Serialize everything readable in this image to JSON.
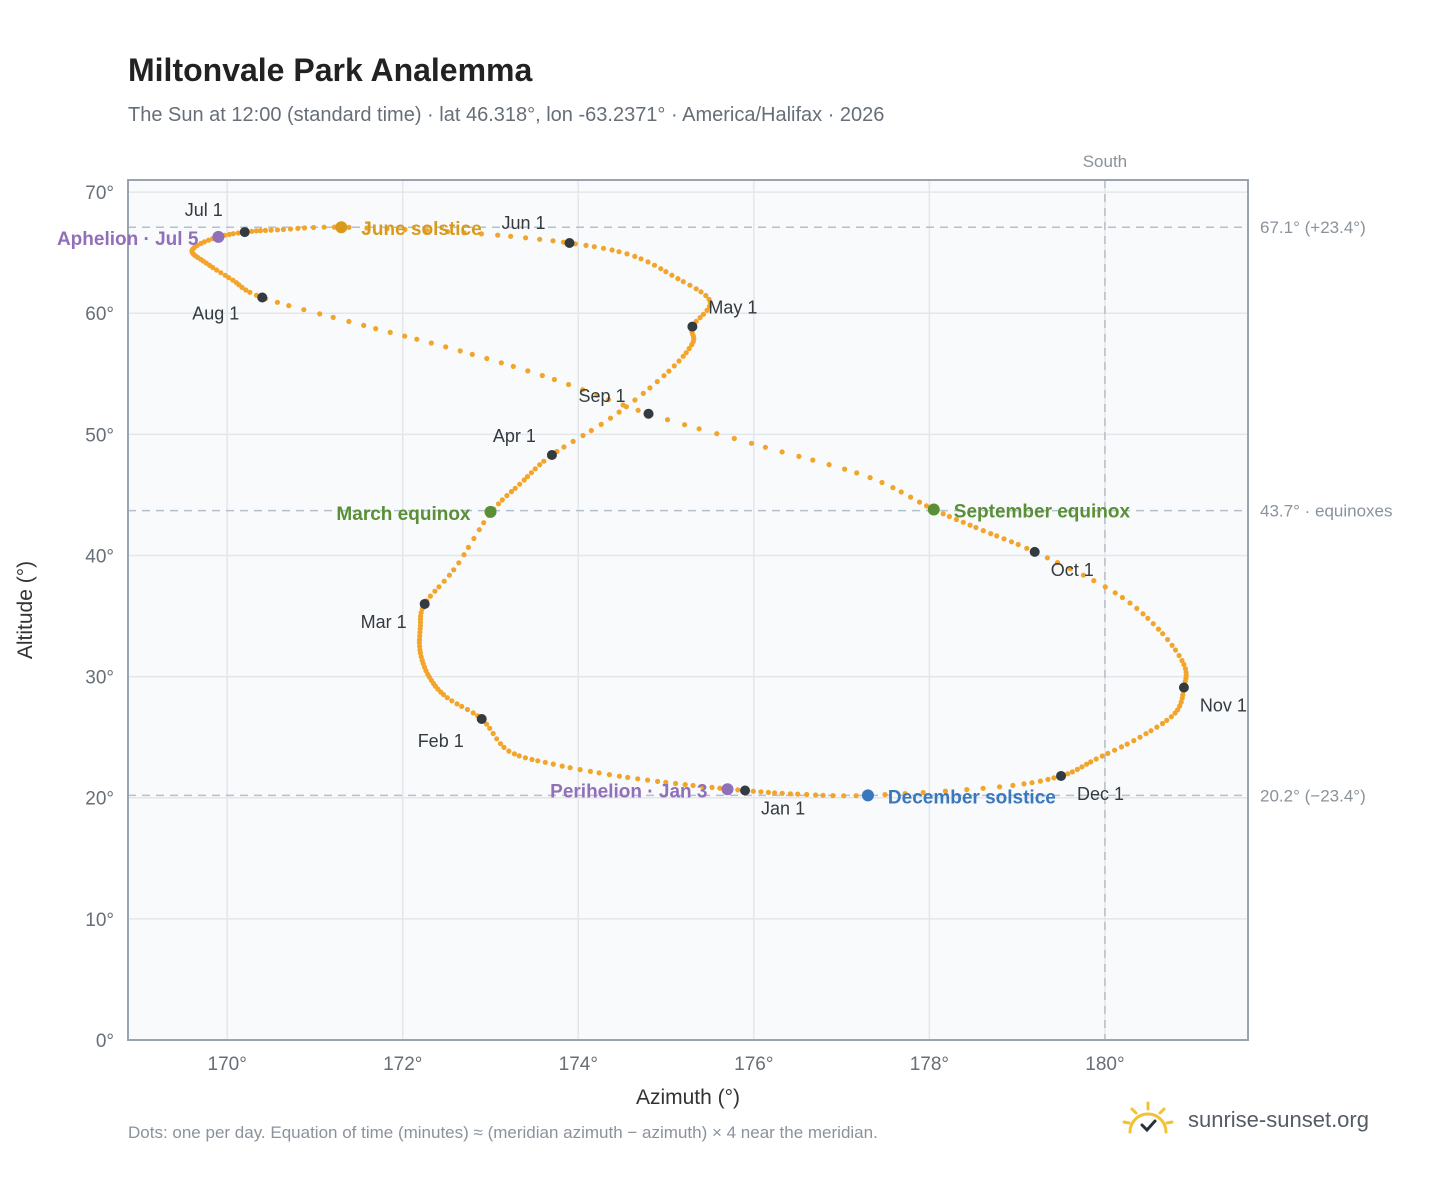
{
  "title": "Miltonvale Park Analemma",
  "subtitle": "The Sun at 12:00 (standard time) · lat 46.318°, lon -63.2371° · America/Halifax · 2026",
  "footnote": "Dots: one per day. Equation of time (minutes) ≈ (meridian azimuth − azimuth) × 4 near the meridian.",
  "brand": {
    "name": "sunrise-sunset.org",
    "icon": "sun-logo-icon"
  },
  "colors": {
    "curve": "#f2a52a",
    "month_point": "#333a40",
    "solstice_june": "#d99a1c",
    "solstice_december": "#3a78bd",
    "equinox": "#5a8f36",
    "apsis": "#9070b8",
    "reference_line": "#b4c0cc",
    "frame": "#9aa4b0",
    "grid": "#e3e7eb",
    "plot_bg": "#f8fafc"
  },
  "chart_data": {
    "type": "scatter",
    "xlabel": "Azimuth (°)",
    "ylabel": "Altitude (°)",
    "xlim": [
      168.87,
      181.63
    ],
    "ylim": [
      0,
      71
    ],
    "x_ticks": [
      "170°",
      "172°",
      "174°",
      "176°",
      "178°",
      "180°"
    ],
    "y_ticks": [
      "0°",
      "10°",
      "20°",
      "30°",
      "40°",
      "50°",
      "60°",
      "70°"
    ],
    "x_tick_values": [
      170,
      172,
      174,
      176,
      178,
      180
    ],
    "y_tick_values": [
      0,
      10,
      20,
      30,
      40,
      50,
      60,
      70
    ],
    "grid": true,
    "meridian": {
      "x": 180,
      "label": "South"
    },
    "reference_lines": [
      {
        "y": 67.1,
        "label": "67.1° (+23.4°)"
      },
      {
        "y": 43.7,
        "label": "43.7° · equinoxes"
      },
      {
        "y": 20.2,
        "label": "20.2° (−23.4°)"
      }
    ],
    "month_points": [
      {
        "label": "Jan 1",
        "x": 175.9,
        "y": 20.6
      },
      {
        "label": "Feb 1",
        "x": 172.9,
        "y": 26.5
      },
      {
        "label": "Mar 1",
        "x": 172.25,
        "y": 36.0
      },
      {
        "label": "Apr 1",
        "x": 173.7,
        "y": 48.3
      },
      {
        "label": "May 1",
        "x": 175.3,
        "y": 58.9
      },
      {
        "label": "Jun 1",
        "x": 173.9,
        "y": 65.8
      },
      {
        "label": "Jul 1",
        "x": 170.2,
        "y": 66.7
      },
      {
        "label": "Aug 1",
        "x": 170.4,
        "y": 61.3
      },
      {
        "label": "Sep 1",
        "x": 174.8,
        "y": 51.7
      },
      {
        "label": "Oct 1",
        "x": 179.2,
        "y": 40.3
      },
      {
        "label": "Nov 1",
        "x": 180.9,
        "y": 29.1
      },
      {
        "label": "Dec 1",
        "x": 179.5,
        "y": 21.8
      }
    ],
    "events": [
      {
        "label": "June solstice",
        "x": 171.3,
        "y": 67.1,
        "kind": "solstice_june"
      },
      {
        "label": "December solstice",
        "x": 177.3,
        "y": 20.2,
        "kind": "solstice_december"
      },
      {
        "label": "March equinox",
        "x": 173.0,
        "y": 43.6,
        "kind": "equinox"
      },
      {
        "label": "September equinox",
        "x": 178.05,
        "y": 43.8,
        "kind": "equinox"
      },
      {
        "label": "Aphelion · Jul 5",
        "x": 169.9,
        "y": 66.3,
        "kind": "apsis"
      },
      {
        "label": "Perihelion · Jan 3",
        "x": 175.7,
        "y": 20.7,
        "kind": "apsis"
      }
    ],
    "series": [
      {
        "name": "",
        "note_style": "one dot per day",
        "values": [
          [
            175.9,
            20.6
          ],
          [
            175.2,
            21.1
          ],
          [
            174.45,
            21.8
          ],
          [
            173.7,
            22.8
          ],
          [
            173.2,
            23.9
          ],
          [
            172.9,
            26.5
          ],
          [
            172.5,
            28.3
          ],
          [
            172.3,
            30.0
          ],
          [
            172.2,
            32.0
          ],
          [
            172.2,
            34.0
          ],
          [
            172.25,
            36.0
          ],
          [
            172.6,
            39.0
          ],
          [
            173.0,
            43.5
          ],
          [
            173.35,
            46.0
          ],
          [
            173.7,
            48.3
          ],
          [
            174.4,
            51.5
          ],
          [
            175.0,
            55.0
          ],
          [
            175.3,
            57.5
          ],
          [
            175.3,
            58.9
          ],
          [
            175.5,
            61.0
          ],
          [
            175.1,
            63.0
          ],
          [
            174.6,
            64.8
          ],
          [
            173.9,
            65.8
          ],
          [
            172.8,
            66.6
          ],
          [
            171.3,
            67.1
          ],
          [
            170.6,
            66.9
          ],
          [
            170.2,
            66.7
          ],
          [
            169.85,
            66.2
          ],
          [
            169.6,
            65.2
          ],
          [
            169.75,
            64.2
          ],
          [
            170.05,
            62.8
          ],
          [
            170.4,
            61.3
          ],
          [
            171.5,
            59.1
          ],
          [
            172.6,
            57.0
          ],
          [
            173.7,
            54.6
          ],
          [
            174.8,
            51.7
          ],
          [
            176.1,
            49.0
          ],
          [
            177.3,
            46.5
          ],
          [
            178.05,
            43.8
          ],
          [
            178.6,
            42.1
          ],
          [
            179.2,
            40.3
          ],
          [
            180.1,
            37.0
          ],
          [
            180.6,
            34.0
          ],
          [
            180.9,
            31.0
          ],
          [
            180.9,
            29.1
          ],
          [
            180.8,
            27.0
          ],
          [
            180.4,
            25.0
          ],
          [
            179.9,
            23.2
          ],
          [
            179.5,
            21.8
          ],
          [
            178.8,
            20.9
          ],
          [
            177.3,
            20.2
          ],
          [
            176.5,
            20.3
          ],
          [
            175.9,
            20.6
          ]
        ]
      }
    ]
  }
}
